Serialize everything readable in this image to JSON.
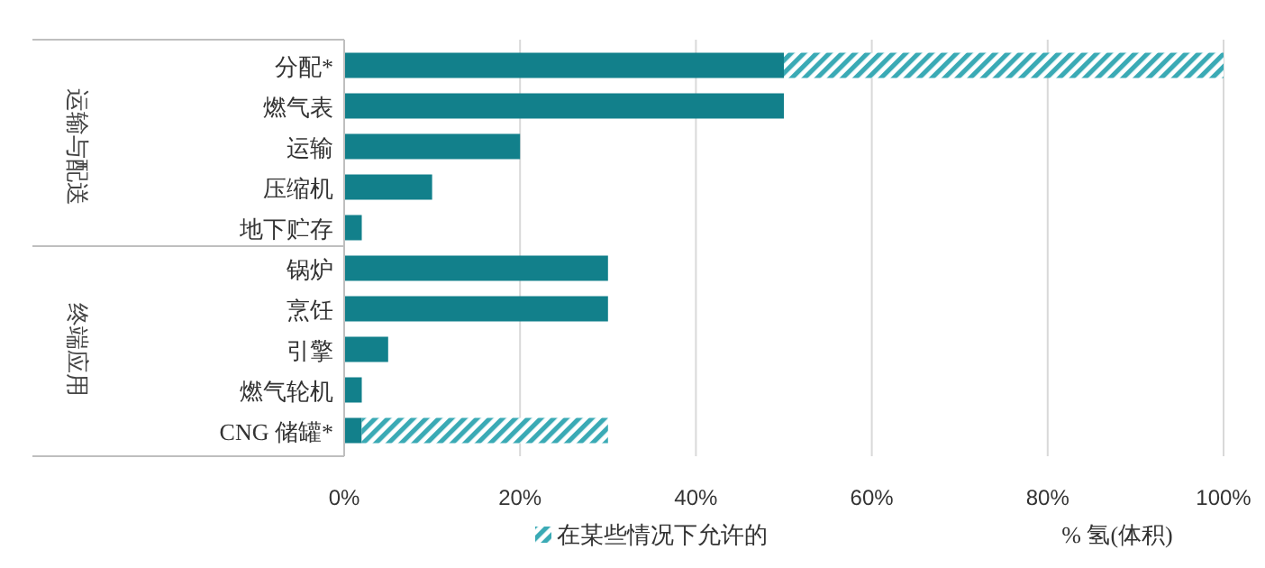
{
  "chart_data": {
    "type": "bar",
    "orientation": "horizontal",
    "stacked": true,
    "categories": [
      "分配*",
      "燃气表",
      "运输",
      "压缩机",
      "地下贮存",
      "锅炉",
      "烹饪",
      "引擎",
      "燃气轮机",
      "CNG 储罐*"
    ],
    "series": [
      {
        "color": "#12808b",
        "values": [
          50,
          50,
          20,
          10,
          2,
          30,
          30,
          5,
          2,
          2
        ]
      },
      {
        "name": "在某些情况下允许的",
        "color": "#3aaab5",
        "values": [
          50,
          null,
          null,
          null,
          null,
          null,
          null,
          null,
          null,
          28
        ]
      }
    ],
    "xlim": [
      0,
      100
    ],
    "xticks": [
      {
        "value": 0,
        "label": "0%"
      },
      {
        "value": 20,
        "label": "20%"
      },
      {
        "value": 40,
        "label": "40%"
      },
      {
        "value": 60,
        "label": "60%"
      },
      {
        "value": 80,
        "label": "80%"
      },
      {
        "value": 100,
        "label": "100%"
      }
    ],
    "xlabel": "% 氢(体积)",
    "annotations": [
      "运输与配送",
      "终端应用"
    ],
    "grid": "x",
    "legend": "bottom"
  }
}
